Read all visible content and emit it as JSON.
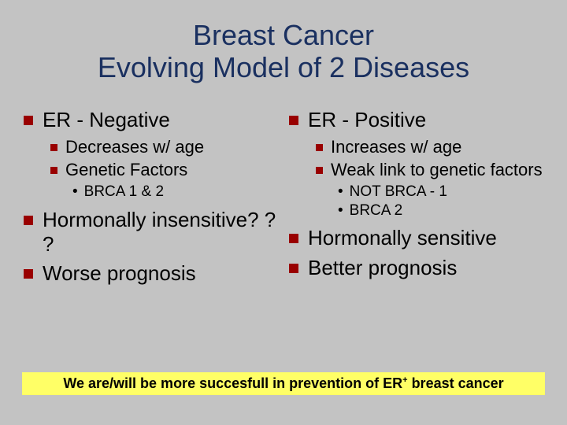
{
  "colors": {
    "background": "#c3c3c3",
    "title": "#1a3060",
    "bullet_square": "#990000",
    "text": "#000000",
    "highlight_bg": "#ffff66"
  },
  "typography": {
    "title_fontsize": 36,
    "l1_fontsize": 26,
    "l2_fontsize": 22,
    "l3_fontsize": 19,
    "footer_fontsize": 18,
    "font_family": "Arial"
  },
  "title": {
    "line1": "Breast Cancer",
    "line2": "Evolving Model of 2 Diseases"
  },
  "left": {
    "h": "ER - Negative",
    "s1": "Decreases w/ age",
    "s2": "Genetic Factors",
    "s2a": "BRCA 1 & 2",
    "b2": "Hormonally insensitive? ? ?",
    "b3": "Worse prognosis"
  },
  "right": {
    "h": "ER - Positive",
    "s1": "Increases w/ age",
    "s2": "Weak link to genetic factors",
    "s2a": "NOT BRCA - 1",
    "s2b": "BRCA 2",
    "b2": "Hormonally sensitive",
    "b3": "Better prognosis"
  },
  "footer": {
    "pre": "We are/will be more succesfull in prevention of ER",
    "sup": "+",
    "post": " breast cancer"
  }
}
